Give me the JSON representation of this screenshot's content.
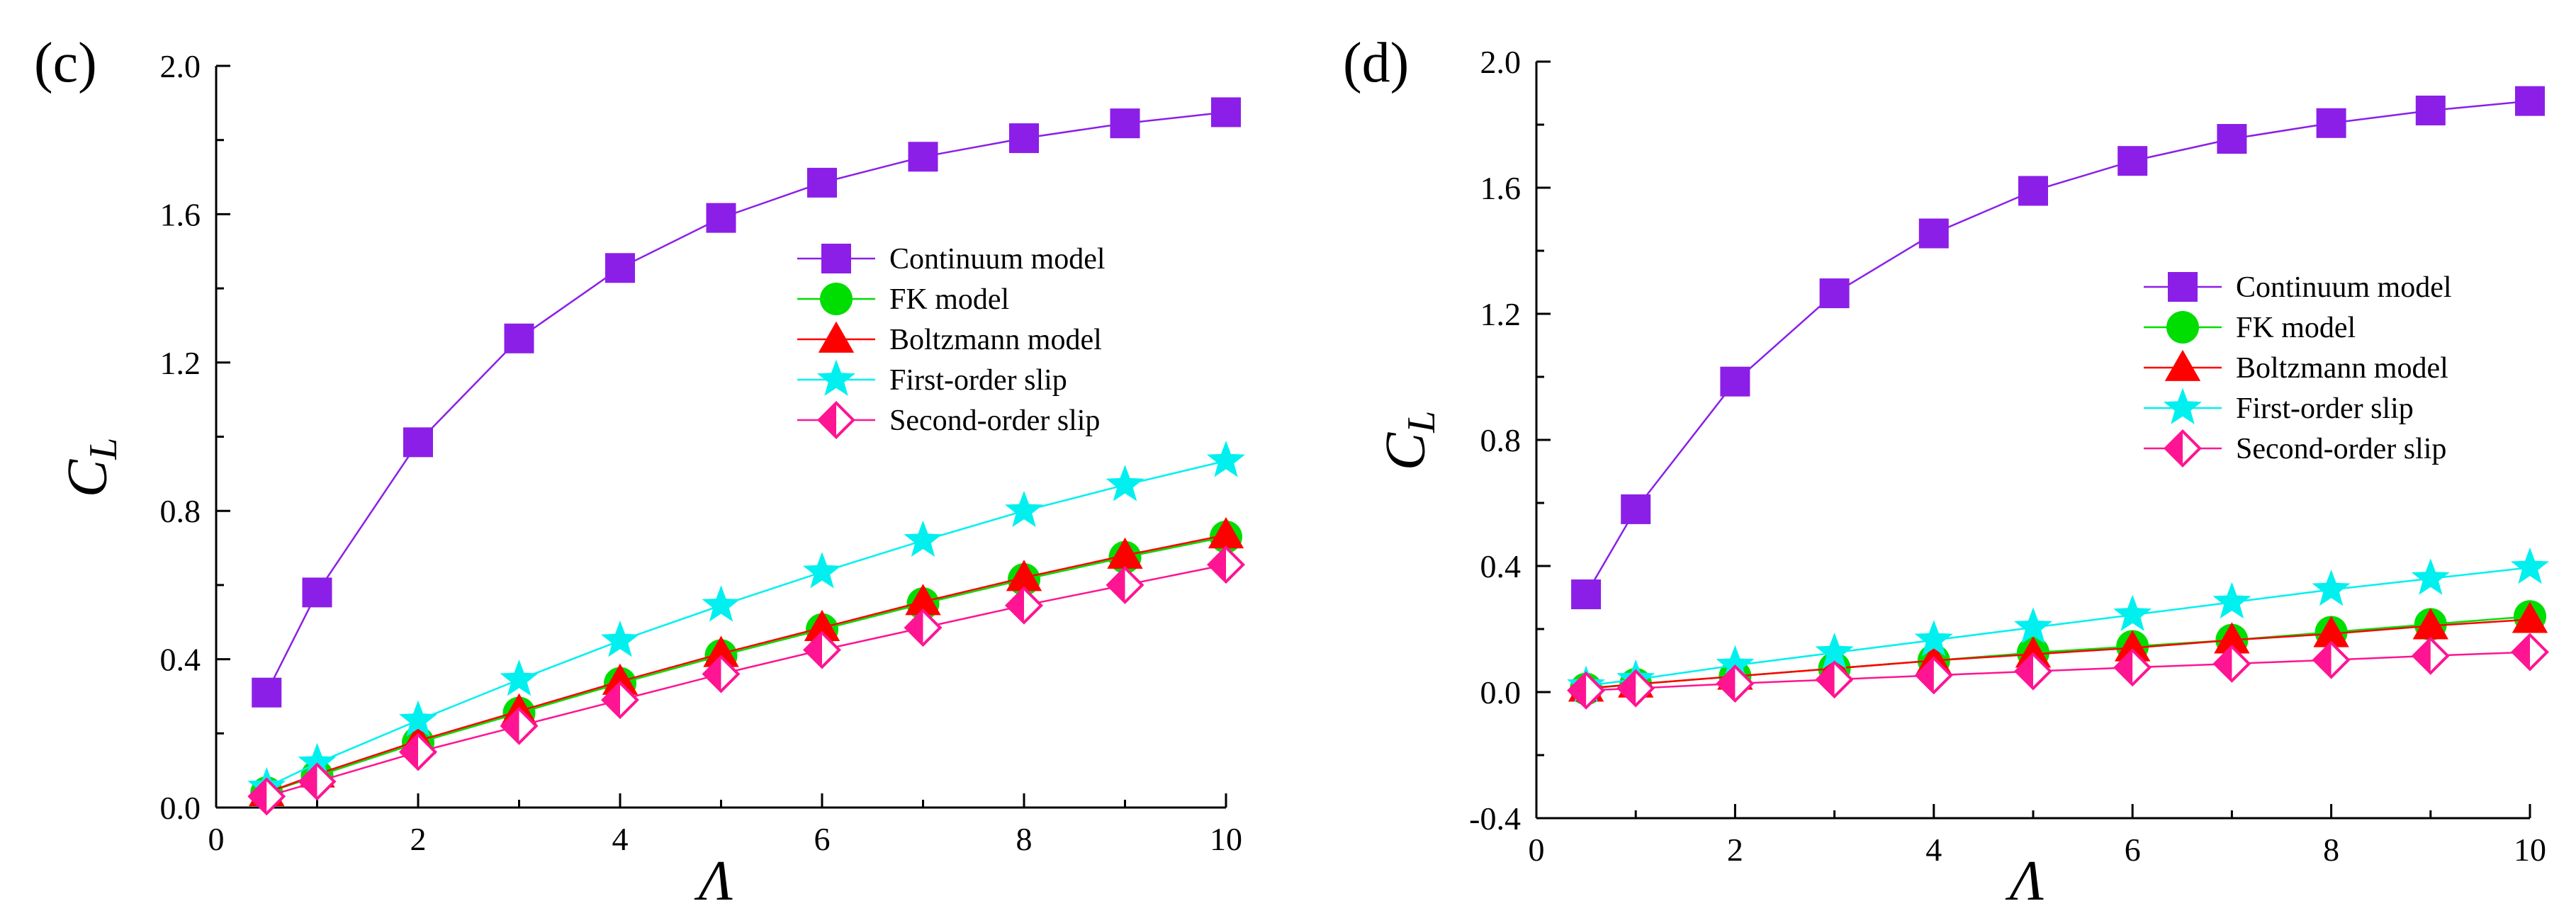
{
  "colors": {
    "continuum": "#8B1FE8",
    "fk": "#00DD00",
    "boltzmann": "#FF0000",
    "first_order": "#00F0F0",
    "second_order": "#FF1493",
    "axis": "#000000"
  },
  "chart_data": [
    {
      "type": "line",
      "panel_label": "(c)",
      "xlabel": "Λ",
      "ylabel": "C",
      "ylabel_subscript": "L",
      "xlim": [
        0,
        10
      ],
      "ylim": [
        0.0,
        2.0
      ],
      "xticks": [
        "0",
        "2",
        "4",
        "6",
        "8",
        "10"
      ],
      "yticks": [
        "0.0",
        "0.4",
        "0.8",
        "1.2",
        "1.6",
        "2.0"
      ],
      "grid": false,
      "legend_position": "center-right",
      "x": [
        0.5,
        1,
        2,
        3,
        4,
        5,
        6,
        7,
        8,
        9,
        10
      ],
      "series": [
        {
          "name": "Continuum model",
          "marker": "square",
          "color_key": "continuum",
          "values": [
            0.31,
            0.58,
            0.985,
            1.265,
            1.455,
            1.59,
            1.685,
            1.755,
            1.805,
            1.845,
            1.875
          ]
        },
        {
          "name": "FK model",
          "marker": "circle",
          "color_key": "fk",
          "values": [
            0.04,
            0.085,
            0.175,
            0.255,
            0.335,
            0.41,
            0.48,
            0.55,
            0.615,
            0.675,
            0.73
          ]
        },
        {
          "name": "Boltzmann model",
          "marker": "triangle",
          "color_key": "boltzmann",
          "values": [
            0.04,
            0.09,
            0.18,
            0.26,
            0.34,
            0.415,
            0.485,
            0.555,
            0.62,
            0.68,
            0.735
          ]
        },
        {
          "name": "First-order slip",
          "marker": "star",
          "color_key": "first_order",
          "values": [
            0.055,
            0.12,
            0.235,
            0.345,
            0.45,
            0.545,
            0.635,
            0.72,
            0.8,
            0.87,
            0.935
          ]
        },
        {
          "name": "Second-order slip",
          "marker": "diamond-half",
          "color_key": "second_order",
          "values": [
            0.03,
            0.07,
            0.15,
            0.22,
            0.29,
            0.36,
            0.425,
            0.485,
            0.545,
            0.6,
            0.655
          ]
        }
      ]
    },
    {
      "type": "line",
      "panel_label": "(d)",
      "xlabel": "Λ",
      "ylabel": "C",
      "ylabel_subscript": "L",
      "xlim": [
        0,
        10
      ],
      "ylim": [
        -0.4,
        2.0
      ],
      "xticks": [
        "0",
        "2",
        "4",
        "6",
        "8",
        "10"
      ],
      "yticks": [
        "-0.4",
        "0.0",
        "0.4",
        "0.8",
        "1.2",
        "1.6",
        "2.0"
      ],
      "grid": false,
      "legend_position": "center-right",
      "x": [
        0.5,
        1,
        2,
        3,
        4,
        5,
        6,
        7,
        8,
        9,
        10
      ],
      "series": [
        {
          "name": "Continuum model",
          "marker": "square",
          "color_key": "continuum",
          "values": [
            0.31,
            0.58,
            0.985,
            1.265,
            1.455,
            1.59,
            1.685,
            1.755,
            1.805,
            1.845,
            1.875
          ]
        },
        {
          "name": "FK model",
          "marker": "circle",
          "color_key": "fk",
          "values": [
            0.01,
            0.025,
            0.05,
            0.075,
            0.1,
            0.125,
            0.145,
            0.165,
            0.19,
            0.215,
            0.24
          ]
        },
        {
          "name": "Boltzmann model",
          "marker": "triangle",
          "color_key": "boltzmann",
          "values": [
            0.012,
            0.025,
            0.05,
            0.075,
            0.1,
            0.12,
            0.14,
            0.165,
            0.185,
            0.21,
            0.23
          ]
        },
        {
          "name": "First-order slip",
          "marker": "star",
          "color_key": "first_order",
          "values": [
            0.02,
            0.04,
            0.085,
            0.125,
            0.165,
            0.205,
            0.245,
            0.285,
            0.325,
            0.36,
            0.395
          ]
        },
        {
          "name": "Second-order slip",
          "marker": "diamond-half",
          "color_key": "second_order",
          "values": [
            0.005,
            0.012,
            0.027,
            0.04,
            0.053,
            0.066,
            0.078,
            0.09,
            0.102,
            0.115,
            0.127
          ]
        }
      ]
    }
  ]
}
